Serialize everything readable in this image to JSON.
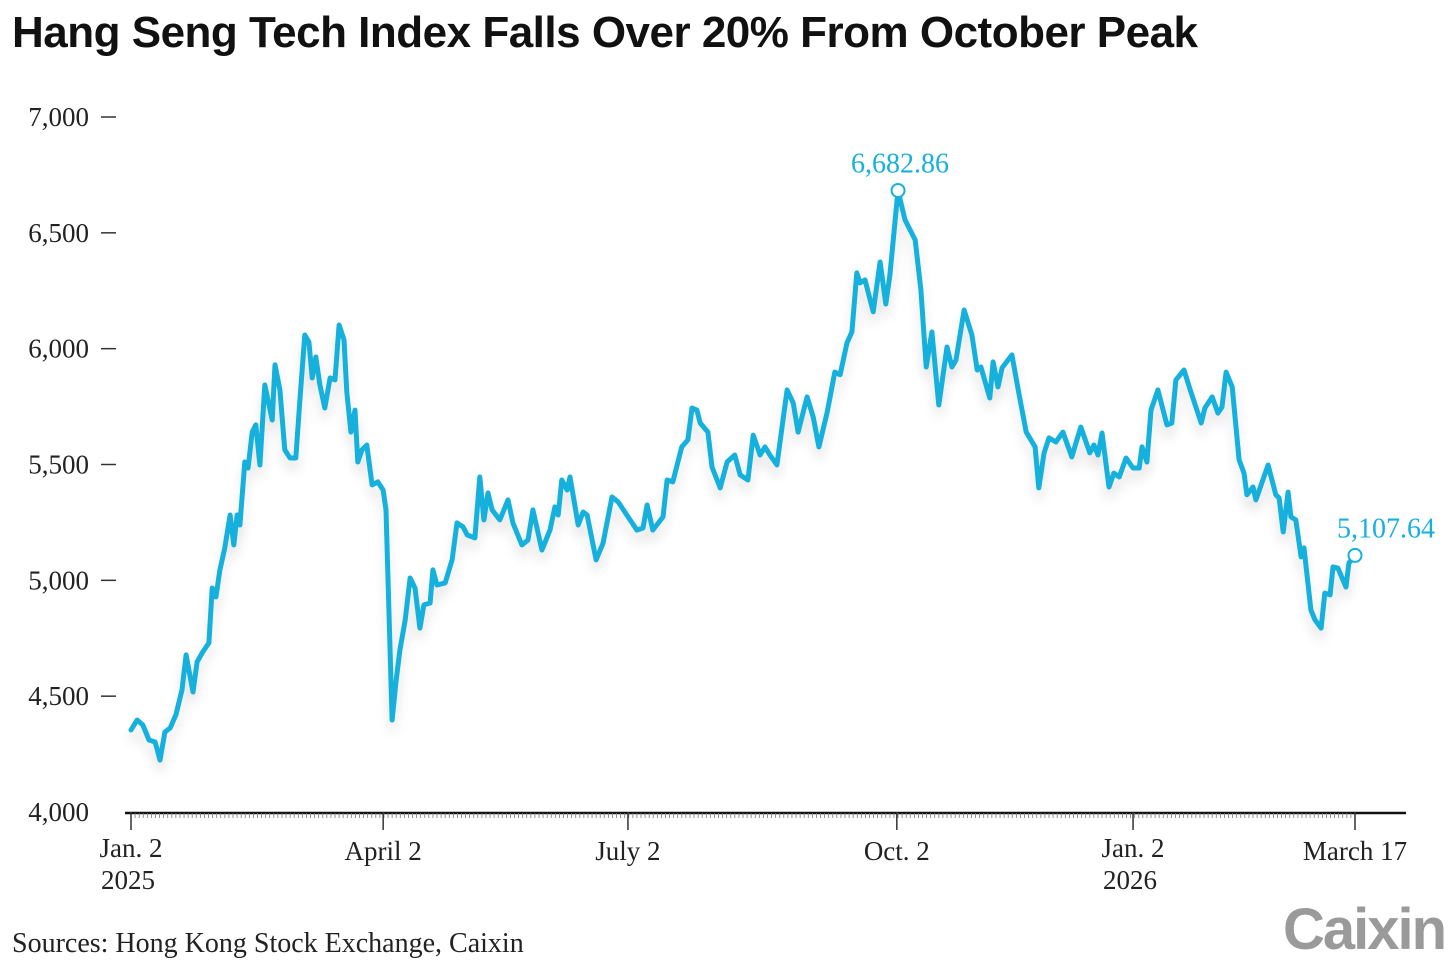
{
  "chart_data": {
    "type": "line",
    "title": "Hang Seng Tech Index Falls Over 20% From October Peak",
    "xlabel": "",
    "ylabel": "",
    "x_units": "trading days since Jan. 2, 2025",
    "xlim": [
      0,
      300
    ],
    "ylim": [
      4000,
      7000
    ],
    "grid": false,
    "y_ticks": [
      {
        "value": 7000,
        "label": "7,000"
      },
      {
        "value": 6500,
        "label": "6,500"
      },
      {
        "value": 6000,
        "label": "6,000"
      },
      {
        "value": 5500,
        "label": "5,500"
      },
      {
        "value": 5000,
        "label": "5,000"
      },
      {
        "value": 4500,
        "label": "4,500"
      },
      {
        "value": 4000,
        "label": "4,000"
      }
    ],
    "x_ticks": [
      {
        "value": 0,
        "label": "Jan. 2",
        "label2": "2025"
      },
      {
        "value": 61.8,
        "label": "April 2",
        "label2": ""
      },
      {
        "value": 121.8,
        "label": "July 2",
        "label2": ""
      },
      {
        "value": 187.7,
        "label": "Oct. 2",
        "label2": ""
      },
      {
        "value": 245.6,
        "label": "Jan. 2",
        "label2": "2026"
      },
      {
        "value": 300,
        "label": "March 17",
        "label2": ""
      }
    ],
    "annotations": [
      {
        "x": 188,
        "y": 6682.86,
        "label": "6,682.86"
      },
      {
        "x": 300,
        "y": 5107.64,
        "label": "5,107.64"
      }
    ],
    "color": "#17B0DC",
    "series": [
      {
        "name": "Hang Seng Tech Index",
        "points": [
          [
            0,
            4354
          ],
          [
            1.5,
            4397
          ],
          [
            2.9,
            4376
          ],
          [
            4.4,
            4311
          ],
          [
            5.9,
            4302
          ],
          [
            7.1,
            4224
          ],
          [
            8.3,
            4345
          ],
          [
            9.6,
            4363
          ],
          [
            11,
            4419
          ],
          [
            12.5,
            4527
          ],
          [
            13.5,
            4678
          ],
          [
            15.2,
            4518
          ],
          [
            16.2,
            4648
          ],
          [
            17.6,
            4691
          ],
          [
            19.1,
            4730
          ],
          [
            19.9,
            4967
          ],
          [
            20.8,
            4928
          ],
          [
            21.8,
            5045
          ],
          [
            23,
            5140
          ],
          [
            24.3,
            5282
          ],
          [
            25.2,
            5153
          ],
          [
            26,
            5282
          ],
          [
            26.7,
            5239
          ],
          [
            27.9,
            5511
          ],
          [
            28.7,
            5485
          ],
          [
            29.7,
            5640
          ],
          [
            30.6,
            5671
          ],
          [
            31.6,
            5498
          ],
          [
            32.8,
            5843
          ],
          [
            34.6,
            5692
          ],
          [
            35.3,
            5930
          ],
          [
            36.5,
            5822
          ],
          [
            37.7,
            5563
          ],
          [
            39,
            5528
          ],
          [
            40.4,
            5528
          ],
          [
            41.4,
            5779
          ],
          [
            42.6,
            6059
          ],
          [
            43.6,
            6029
          ],
          [
            44.4,
            5874
          ],
          [
            45.3,
            5964
          ],
          [
            46.3,
            5843
          ],
          [
            47.5,
            5744
          ],
          [
            48.8,
            5874
          ],
          [
            50,
            5865
          ],
          [
            51,
            6102
          ],
          [
            52.2,
            6038
          ],
          [
            52.9,
            5813
          ],
          [
            53.9,
            5640
          ],
          [
            54.9,
            5735
          ],
          [
            55.6,
            5511
          ],
          [
            56.6,
            5563
          ],
          [
            57.8,
            5584
          ],
          [
            59.1,
            5412
          ],
          [
            60.5,
            5425
          ],
          [
            61.8,
            5390
          ],
          [
            62.5,
            5304
          ],
          [
            64,
            4397
          ],
          [
            65,
            4570
          ],
          [
            65.9,
            4699
          ],
          [
            67.2,
            4829
          ],
          [
            68.4,
            5010
          ],
          [
            69.6,
            4967
          ],
          [
            70.8,
            4794
          ],
          [
            71.8,
            4894
          ],
          [
            73.3,
            4902
          ],
          [
            74,
            5045
          ],
          [
            75,
            4980
          ],
          [
            77,
            4989
          ],
          [
            78.7,
            5088
          ],
          [
            79.9,
            5248
          ],
          [
            81.4,
            5230
          ],
          [
            82.4,
            5196
          ],
          [
            84.3,
            5183
          ],
          [
            85.5,
            5446
          ],
          [
            86.5,
            5261
          ],
          [
            87.5,
            5377
          ],
          [
            88.5,
            5304
          ],
          [
            90.4,
            5261
          ],
          [
            92.4,
            5347
          ],
          [
            93.6,
            5248
          ],
          [
            95.8,
            5153
          ],
          [
            97.3,
            5174
          ],
          [
            98.5,
            5304
          ],
          [
            100.7,
            5131
          ],
          [
            102.7,
            5217
          ],
          [
            103.9,
            5317
          ],
          [
            104.7,
            5282
          ],
          [
            105.6,
            5433
          ],
          [
            106.9,
            5390
          ],
          [
            107.6,
            5446
          ],
          [
            109.6,
            5239
          ],
          [
            110.8,
            5295
          ],
          [
            111.8,
            5282
          ],
          [
            114,
            5088
          ],
          [
            115.7,
            5161
          ],
          [
            117.9,
            5360
          ],
          [
            119.4,
            5338
          ],
          [
            124,
            5217
          ],
          [
            125.5,
            5226
          ],
          [
            126.5,
            5325
          ],
          [
            127.9,
            5217
          ],
          [
            130.4,
            5274
          ],
          [
            131.4,
            5433
          ],
          [
            132.8,
            5425
          ],
          [
            135,
            5576
          ],
          [
            136.5,
            5606
          ],
          [
            137.5,
            5744
          ],
          [
            138.7,
            5735
          ],
          [
            139.5,
            5679
          ],
          [
            141.4,
            5640
          ],
          [
            142.4,
            5489
          ],
          [
            144.4,
            5399
          ],
          [
            146.1,
            5511
          ],
          [
            148,
            5541
          ],
          [
            149.3,
            5455
          ],
          [
            151.2,
            5433
          ],
          [
            152.5,
            5627
          ],
          [
            154.2,
            5541
          ],
          [
            155.4,
            5576
          ],
          [
            156.6,
            5541
          ],
          [
            158.3,
            5498
          ],
          [
            160.8,
            5822
          ],
          [
            162.3,
            5766
          ],
          [
            163.5,
            5640
          ],
          [
            165.7,
            5792
          ],
          [
            167.2,
            5705
          ],
          [
            168.6,
            5576
          ],
          [
            170.6,
            5722
          ],
          [
            172.5,
            5899
          ],
          [
            173.8,
            5887
          ],
          [
            175.5,
            6025
          ],
          [
            176.7,
            6072
          ],
          [
            177.9,
            6327
          ],
          [
            178.7,
            6284
          ],
          [
            179.9,
            6297
          ],
          [
            181.9,
            6159
          ],
          [
            183.6,
            6374
          ],
          [
            185,
            6193
          ],
          [
            186,
            6318
          ],
          [
            188,
            6682.86
          ],
          [
            189.7,
            6556
          ],
          [
            192.2,
            6469
          ],
          [
            193.6,
            6253
          ],
          [
            194.9,
            5921
          ],
          [
            196.3,
            6072
          ],
          [
            198,
            5757
          ],
          [
            200,
            6007
          ],
          [
            201.2,
            5921
          ],
          [
            202.2,
            5951
          ],
          [
            204.2,
            6167
          ],
          [
            206.1,
            6059
          ],
          [
            207.4,
            5908
          ],
          [
            208.3,
            5921
          ],
          [
            210.5,
            5787
          ],
          [
            211.3,
            5943
          ],
          [
            212.5,
            5835
          ],
          [
            213.5,
            5917
          ],
          [
            215.9,
            5973
          ],
          [
            217.6,
            5809
          ],
          [
            219.4,
            5640
          ],
          [
            221.6,
            5576
          ],
          [
            222.5,
            5399
          ],
          [
            223.8,
            5550
          ],
          [
            225,
            5615
          ],
          [
            226.7,
            5597
          ],
          [
            228.4,
            5640
          ],
          [
            230.6,
            5533
          ],
          [
            232.8,
            5662
          ],
          [
            235,
            5550
          ],
          [
            236,
            5584
          ],
          [
            237,
            5541
          ],
          [
            238,
            5636
          ],
          [
            239.7,
            5403
          ],
          [
            240.9,
            5463
          ],
          [
            242.2,
            5446
          ],
          [
            243.9,
            5528
          ],
          [
            245.6,
            5485
          ],
          [
            247.1,
            5485
          ],
          [
            247.8,
            5576
          ],
          [
            249,
            5511
          ],
          [
            250,
            5735
          ],
          [
            251.7,
            5822
          ],
          [
            253.9,
            5671
          ],
          [
            255.1,
            5679
          ],
          [
            256.1,
            5865
          ],
          [
            258.1,
            5908
          ],
          [
            259.6,
            5822
          ],
          [
            262.3,
            5679
          ],
          [
            263.2,
            5744
          ],
          [
            265,
            5792
          ],
          [
            266.4,
            5722
          ],
          [
            267.4,
            5748
          ],
          [
            268.4,
            5899
          ],
          [
            269.9,
            5835
          ],
          [
            271.6,
            5520
          ],
          [
            272.8,
            5463
          ],
          [
            273.5,
            5369
          ],
          [
            275,
            5403
          ],
          [
            275.7,
            5347
          ],
          [
            278.7,
            5498
          ],
          [
            280.6,
            5369
          ],
          [
            281.4,
            5356
          ],
          [
            282.4,
            5209
          ],
          [
            283.6,
            5381
          ],
          [
            284.3,
            5274
          ],
          [
            285.5,
            5261
          ],
          [
            286.8,
            5101
          ],
          [
            287.5,
            5140
          ],
          [
            289.2,
            4872
          ],
          [
            290.2,
            4829
          ],
          [
            291.7,
            4794
          ],
          [
            292.6,
            4945
          ],
          [
            293.9,
            4937
          ],
          [
            294.6,
            5058
          ],
          [
            295.8,
            5053
          ],
          [
            297.8,
            4971
          ],
          [
            298.5,
            5075
          ],
          [
            300,
            5107.64
          ]
        ]
      }
    ],
    "source": "Sources: Hong Kong Stock Exchange, Caixin",
    "logo": "Caixin"
  }
}
